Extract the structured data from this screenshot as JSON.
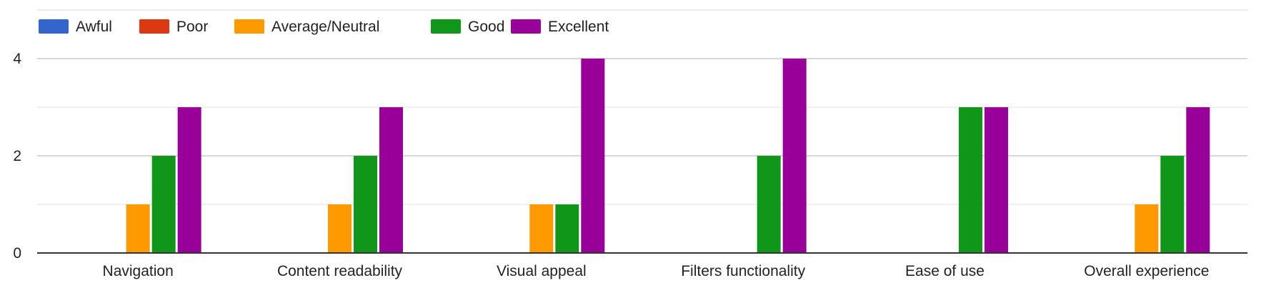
{
  "chart_data": {
    "type": "bar",
    "title": "",
    "xlabel": "",
    "ylabel": "",
    "ylim": [
      0,
      4
    ],
    "yticks": [
      0,
      2,
      4
    ],
    "grid": true,
    "legend_position": "top-left",
    "categories": [
      "Navigation",
      "Content readability",
      "Visual appeal",
      "Filters functionality",
      "Ease of use",
      "Overall experience"
    ],
    "series": [
      {
        "name": "Awful",
        "color": "#3366cc",
        "values": [
          0,
          0,
          0,
          0,
          0,
          0
        ]
      },
      {
        "name": "Poor",
        "color": "#dc3912",
        "values": [
          0,
          0,
          0,
          0,
          0,
          0
        ]
      },
      {
        "name": "Average/Neutral",
        "color": "#ff9900",
        "values": [
          1,
          1,
          1,
          0,
          0,
          1
        ]
      },
      {
        "name": "Good",
        "color": "#109618",
        "values": [
          2,
          2,
          1,
          2,
          3,
          2
        ]
      },
      {
        "name": "Excellent",
        "color": "#990099",
        "values": [
          3,
          3,
          4,
          4,
          3,
          3
        ]
      }
    ]
  }
}
